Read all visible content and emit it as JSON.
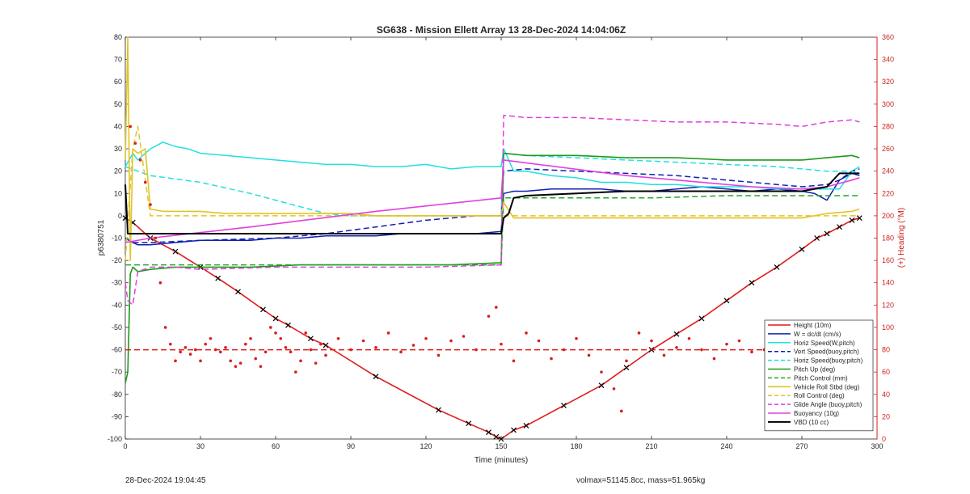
{
  "chart_data": {
    "type": "line",
    "title": "SG638 - Mission Ellett Array 13 28-Dec-2024 14:04:06Z",
    "xlabel": "Time (minutes)",
    "ylabel": "p6380751",
    "y2label": "(+) Heading (°M)",
    "xlim": [
      0,
      300
    ],
    "ylim": [
      -100,
      80
    ],
    "y2lim": [
      0,
      360
    ],
    "xticks": [
      "0",
      "30",
      "60",
      "90",
      "120",
      "150",
      "180",
      "210",
      "240",
      "270",
      "300"
    ],
    "yticks": [
      "80",
      "70",
      "60",
      "50",
      "40",
      "30",
      "20",
      "10",
      "0",
      "-10",
      "-20",
      "-30",
      "-40",
      "-50",
      "-60",
      "-70",
      "-80",
      "-90",
      "-100"
    ],
    "y2ticks": [
      "360",
      "340",
      "320",
      "300",
      "280",
      "260",
      "240",
      "220",
      "200",
      "180",
      "160",
      "140",
      "120",
      "100",
      "80",
      "60",
      "40",
      "20",
      "0"
    ],
    "legend_position": "bottom-right",
    "series": [
      {
        "name": "Height (10m)",
        "color": "#dd1c1c",
        "style": "solid",
        "width": 1.6,
        "marker": "x",
        "x": [
          0,
          3,
          10,
          20,
          30,
          37,
          45,
          55,
          60,
          65,
          74,
          80,
          100,
          125,
          137,
          145,
          148,
          150,
          155,
          160,
          175,
          190,
          200,
          210,
          220,
          230,
          240,
          250,
          260,
          270,
          276,
          280,
          285,
          290,
          293
        ],
        "y": [
          -1,
          -3,
          -10,
          -16,
          -23,
          -28,
          -34,
          -42,
          -46,
          -49,
          -55,
          -58,
          -72,
          -87,
          -93,
          -97,
          -99,
          -100,
          -96,
          -94,
          -85,
          -76,
          -68,
          -60,
          -53,
          -46,
          -38,
          -30,
          -23,
          -15,
          -10,
          -8,
          -5,
          -2,
          -1
        ]
      },
      {
        "name": "W = dc/dt (cm/s)",
        "color": "#1020b0",
        "style": "solid",
        "width": 1.5,
        "x": [
          0,
          3,
          5,
          10,
          20,
          30,
          40,
          50,
          60,
          70,
          80,
          90,
          100,
          110,
          120,
          130,
          140,
          150,
          151,
          155,
          160,
          170,
          180,
          190,
          200,
          210,
          220,
          230,
          240,
          250,
          260,
          270,
          275,
          280,
          285,
          290,
          293
        ],
        "y": [
          -10,
          -12,
          -13,
          -13,
          -12,
          -11,
          -11,
          -11,
          -10,
          -10,
          -9,
          -9,
          -9,
          -8,
          -8,
          -8,
          -8,
          -7,
          10,
          11,
          11,
          12,
          12,
          12,
          11,
          11,
          12,
          13,
          12,
          11,
          12,
          11,
          10,
          7,
          16,
          19,
          18
        ]
      },
      {
        "name": "Horiz Speed(W,pitch)",
        "color": "#22e0e0",
        "style": "solid",
        "width": 1.5,
        "x": [
          0,
          3,
          5,
          10,
          15,
          20,
          25,
          30,
          40,
          50,
          60,
          70,
          80,
          90,
          100,
          110,
          120,
          130,
          140,
          150,
          151,
          155,
          160,
          170,
          180,
          190,
          200,
          210,
          220,
          230,
          240,
          250,
          260,
          270,
          280,
          285,
          290,
          293
        ],
        "y": [
          22,
          28,
          25,
          30,
          33,
          31,
          30,
          28,
          27,
          26,
          25,
          24,
          23,
          23,
          22,
          22,
          23,
          21,
          22,
          22,
          30,
          20,
          20,
          18,
          17,
          15,
          15,
          14,
          14,
          13,
          13,
          13,
          12,
          12,
          12,
          12,
          20,
          22
        ]
      },
      {
        "name": "Vert Speed(buoy,pitch)",
        "color": "#1020b0",
        "style": "dashed",
        "width": 1.5,
        "x": [
          0,
          3,
          10,
          30,
          60,
          80,
          100,
          120,
          140,
          150,
          151,
          160,
          180,
          200,
          220,
          240,
          260,
          270,
          280,
          285,
          290,
          293
        ],
        "y": [
          -10,
          -12,
          -12,
          -11,
          -10,
          -8,
          -5,
          -2,
          0,
          0,
          20,
          21,
          20,
          19,
          18,
          16,
          14,
          13,
          14,
          16,
          20,
          21
        ]
      },
      {
        "name": "Horiz Speed(buoy,pitch)",
        "color": "#22e0e0",
        "style": "dashed",
        "width": 1.5,
        "x": [
          0,
          5,
          10,
          30,
          50,
          60,
          70,
          80,
          90,
          150,
          151,
          160,
          180,
          200,
          220,
          240,
          260,
          270,
          280,
          290,
          293
        ],
        "y": [
          22,
          20,
          18,
          15,
          10,
          7,
          4,
          1,
          0,
          0,
          28,
          27,
          26,
          25,
          24,
          23,
          22,
          21,
          20,
          20,
          19
        ]
      },
      {
        "name": "Pitch Up (deg)",
        "color": "#1a9a1a",
        "style": "solid",
        "width": 1.6,
        "x": [
          0,
          1,
          2,
          3,
          5,
          10,
          20,
          30,
          50,
          70,
          90,
          110,
          130,
          150,
          151,
          160,
          180,
          200,
          220,
          240,
          260,
          270,
          280,
          290,
          293
        ],
        "y": [
          -75,
          -70,
          -26,
          -23,
          -25,
          -24,
          -23,
          -23,
          -23,
          -22,
          -22,
          -22,
          -22,
          -21,
          28,
          27,
          27,
          26,
          26,
          25,
          25,
          25,
          26,
          27,
          26
        ]
      },
      {
        "name": "Pitch Control (mm)",
        "color": "#22aa22",
        "style": "dashed",
        "width": 1.5,
        "x": [
          0,
          5,
          10,
          30,
          60,
          90,
          120,
          150,
          151,
          180,
          210,
          240,
          270,
          290,
          293
        ],
        "y": [
          -22,
          -22,
          -22,
          -22,
          -22,
          -22,
          -22,
          -22,
          8,
          8,
          8,
          9,
          9,
          9,
          9
        ]
      },
      {
        "name": "Vehicle Roll Stbd (deg)",
        "color": "#e0c428",
        "style": "solid",
        "width": 1.6,
        "x": [
          0,
          1,
          2,
          3,
          5,
          8,
          10,
          15,
          20,
          25,
          30,
          40,
          50,
          60,
          70,
          80,
          90,
          100,
          110,
          120,
          130,
          140,
          150,
          151,
          155,
          160,
          170,
          180,
          190,
          200,
          210,
          220,
          230,
          240,
          250,
          260,
          270,
          280,
          290,
          293
        ],
        "y": [
          25,
          80,
          -20,
          30,
          28,
          30,
          3,
          2,
          2,
          2,
          2,
          1,
          1,
          1,
          1,
          1,
          1,
          0,
          0,
          0,
          0,
          0,
          0,
          6,
          -1,
          -1,
          -1,
          -1,
          -1,
          -1,
          -1,
          -1,
          -1,
          -1,
          -1,
          -1,
          -1,
          1,
          2,
          3
        ]
      },
      {
        "name": "Roll Control (deg)",
        "color": "#e0c428",
        "style": "dashed",
        "width": 1.5,
        "x": [
          0,
          3,
          5,
          10,
          20,
          30,
          60,
          90,
          120,
          150,
          151,
          160,
          180,
          210,
          240,
          270,
          290,
          293
        ],
        "y": [
          -20,
          30,
          40,
          0,
          0,
          0,
          0,
          0,
          0,
          0,
          0,
          0,
          0,
          0,
          0,
          0,
          0,
          0
        ]
      },
      {
        "name": "Glide Angle (buoy,pitch)",
        "color": "#e040e0",
        "style": "dashed",
        "width": 1.5,
        "x": [
          0,
          1,
          3,
          5,
          10,
          20,
          30,
          60,
          90,
          120,
          150,
          151,
          160,
          180,
          200,
          220,
          240,
          260,
          270,
          280,
          290,
          293
        ],
        "y": [
          -30,
          -38,
          -40,
          -25,
          -23,
          -23,
          -24,
          -23,
          -23,
          -23,
          -22,
          45,
          44,
          44,
          43,
          42,
          42,
          41,
          40,
          42,
          43,
          42
        ]
      },
      {
        "name": "Buoyancy (10g)",
        "color": "#e040e0",
        "style": "solid",
        "width": 1.6,
        "x": [
          0,
          10,
          50,
          100,
          150,
          151,
          200,
          250,
          270,
          280,
          290,
          293
        ],
        "y": [
          -12,
          -10,
          -5,
          2,
          8,
          25,
          18,
          13,
          12,
          13,
          16,
          17
        ]
      },
      {
        "name": "VBD (10 cc)",
        "color": "#000000",
        "style": "solid",
        "width": 2,
        "x": [
          0,
          1,
          2,
          5,
          10,
          50,
          100,
          150,
          151,
          153,
          155,
          160,
          180,
          200,
          220,
          240,
          250,
          260,
          270,
          275,
          280,
          285,
          290,
          293
        ],
        "y": [
          14,
          -8,
          -8,
          -8,
          -8,
          -8,
          -8,
          -8,
          -1,
          1,
          8,
          9,
          10,
          11,
          11,
          11,
          11,
          11,
          11,
          12,
          13,
          19,
          19,
          19
        ]
      },
      {
        "name": "Heading",
        "axis": "right",
        "color": "#dd1c1c",
        "style": "dots",
        "x": [
          2,
          4,
          6,
          8,
          10,
          12,
          14,
          16,
          18,
          20,
          22,
          24,
          26,
          28,
          30,
          32,
          34,
          36,
          38,
          40,
          42,
          44,
          46,
          48,
          50,
          52,
          54,
          56,
          58,
          60,
          62,
          64,
          66,
          68,
          70,
          72,
          74,
          76,
          78,
          80,
          85,
          90,
          95,
          100,
          105,
          110,
          115,
          120,
          125,
          130,
          135,
          140,
          145,
          148,
          150,
          155,
          160,
          165,
          170,
          175,
          180,
          185,
          190,
          195,
          198,
          200,
          205,
          210,
          215,
          220,
          225,
          230,
          235,
          240,
          245,
          250,
          255,
          260,
          265,
          270,
          275,
          280,
          285,
          290,
          293
        ],
        "y": [
          280,
          265,
          250,
          230,
          210,
          180,
          140,
          100,
          85,
          70,
          78,
          82,
          76,
          80,
          70,
          85,
          90,
          80,
          78,
          82,
          70,
          65,
          68,
          85,
          90,
          72,
          65,
          78,
          100,
          95,
          90,
          82,
          78,
          60,
          70,
          95,
          80,
          68,
          85,
          75,
          90,
          80,
          88,
          82,
          95,
          78,
          84,
          90,
          75,
          88,
          92,
          80,
          110,
          118,
          85,
          70,
          95,
          88,
          72,
          80,
          90,
          75,
          60,
          45,
          25,
          70,
          95,
          88,
          75,
          82,
          90,
          80,
          72,
          85,
          88,
          78,
          80,
          90,
          85,
          82,
          78,
          88,
          90,
          85,
          80
        ]
      },
      {
        "name": "Heading target",
        "axis": "right",
        "color": "#dd1c1c",
        "style": "dashed",
        "width": 1.5,
        "x": [
          0,
          293
        ],
        "y": [
          80,
          80
        ]
      }
    ]
  },
  "footer": {
    "timestamp": "28-Dec-2024 19:04:45",
    "info": "volmax=51145.8cc, mass=51.965kg"
  }
}
